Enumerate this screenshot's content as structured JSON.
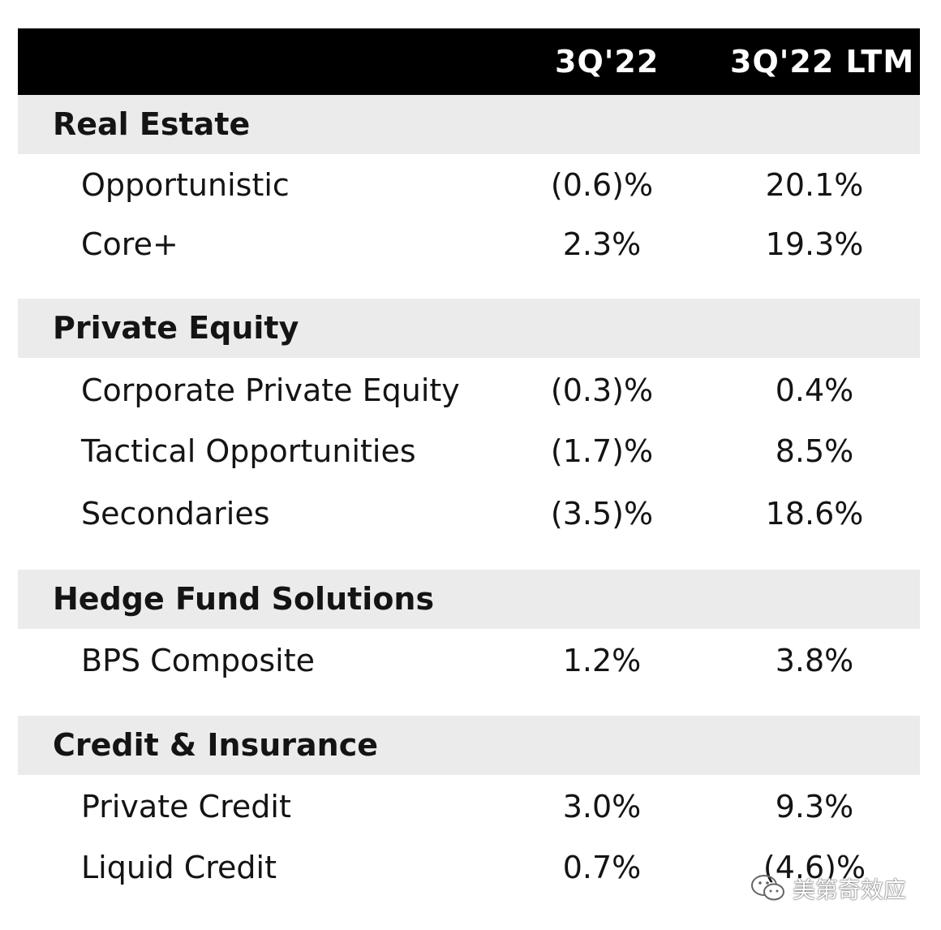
{
  "header": {
    "col1": "3Q'22",
    "col2": "3Q'22 LTM"
  },
  "sections": [
    {
      "title": "Real Estate",
      "rows": [
        {
          "label": "Opportunistic",
          "q": "(0.6)%",
          "ltm": "20.1%"
        },
        {
          "label": "Core+",
          "q": "2.3%",
          "ltm": "19.3%"
        }
      ]
    },
    {
      "title": "Private Equity",
      "rows": [
        {
          "label": "Corporate Private Equity",
          "q": "(0.3)%",
          "ltm": "0.4%"
        },
        {
          "label": "Tactical Opportunities",
          "q": "(1.7)%",
          "ltm": "8.5%"
        },
        {
          "label": "Secondaries",
          "q": "(3.5)%",
          "ltm": "18.6%"
        }
      ]
    },
    {
      "title": "Hedge Fund Solutions",
      "rows": [
        {
          "label": "BPS Composite",
          "q": "1.2%",
          "ltm": "3.8%"
        }
      ]
    },
    {
      "title": "Credit & Insurance",
      "rows": [
        {
          "label": "Private Credit",
          "q": "3.0%",
          "ltm": "9.3%"
        },
        {
          "label": "Liquid Credit",
          "q": "0.7%",
          "ltm": "(4.6)%"
        }
      ]
    }
  ],
  "watermark": {
    "text": "美第奇效应",
    "icon": "wechat-icon"
  }
}
